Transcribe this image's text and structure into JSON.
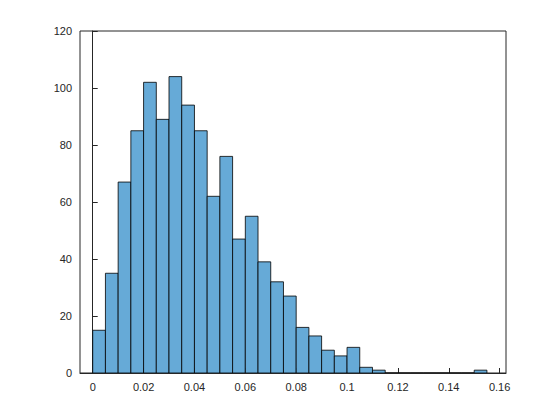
{
  "chart_data": {
    "type": "histogram",
    "bins": [
      0,
      0.005,
      0.01,
      0.015,
      0.02,
      0.025,
      0.03,
      0.035,
      0.04,
      0.045,
      0.05,
      0.055,
      0.06,
      0.065,
      0.07,
      0.075,
      0.08,
      0.085,
      0.09,
      0.095,
      0.1,
      0.105,
      0.11,
      0.115,
      0.12,
      0.125,
      0.13,
      0.135,
      0.14,
      0.145,
      0.15,
      0.155
    ],
    "counts": [
      15,
      35,
      67,
      85,
      102,
      89,
      104,
      94,
      85,
      62,
      76,
      47,
      55,
      39,
      32,
      27,
      16,
      13,
      8,
      6,
      9,
      2,
      1,
      0,
      0,
      0,
      0,
      0,
      0,
      0,
      1
    ],
    "color": "#66aad7",
    "xlim": [
      -0.005,
      0.1625
    ],
    "xticks": [
      0,
      0.02,
      0.04,
      0.06,
      0.08,
      0.1,
      0.12,
      0.14,
      0.16
    ],
    "ylim": [
      0,
      120
    ],
    "yticks": [
      0,
      20,
      40,
      60,
      80,
      100,
      120
    ],
    "grid": false
  }
}
